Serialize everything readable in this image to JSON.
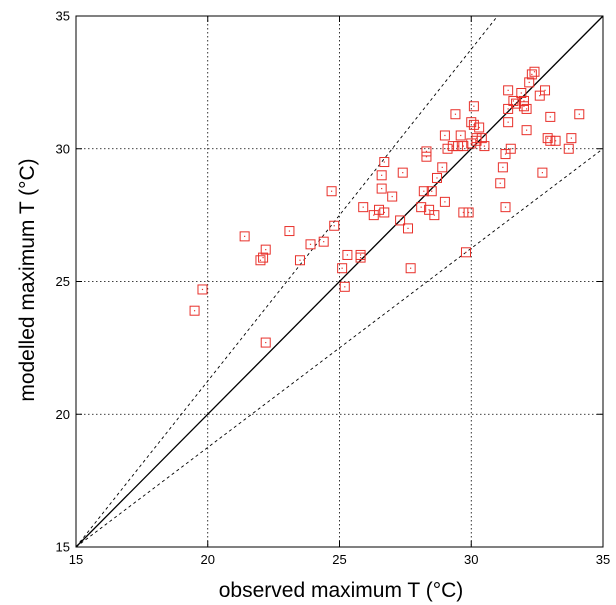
{
  "chart_data": {
    "type": "scatter",
    "title": "",
    "xlabel": "observed maximum T (°C)",
    "ylabel": "modelled maximum T (°C)",
    "xlim": [
      15,
      35
    ],
    "ylim": [
      15,
      35
    ],
    "xticks": [
      "15",
      "20",
      "25",
      "30",
      "35"
    ],
    "yticks": [
      "15",
      "20",
      "25",
      "30",
      "35"
    ],
    "grid": true,
    "legend": "none",
    "marker": "open-square",
    "marker_color": "#e8302a",
    "reference_lines": [
      {
        "name": "1:1 line",
        "style": "solid",
        "slope": 1.0
      },
      {
        "name": "upper dashed",
        "style": "dashed",
        "slope": 1.25
      },
      {
        "name": "lower dashed",
        "style": "dashed",
        "slope": 0.75
      }
    ],
    "series": [
      {
        "x": [
          19.5,
          19.8,
          21.4,
          22.0,
          22.1,
          22.2,
          22.2,
          23.1,
          23.5,
          23.9,
          24.4,
          24.7,
          24.8,
          25.1,
          25.2,
          25.3,
          25.8,
          25.8,
          25.9,
          26.3,
          26.5,
          26.6,
          26.6,
          26.7,
          26.7,
          27.0,
          27.3,
          27.4,
          27.6,
          27.7,
          28.1,
          28.2,
          28.3,
          28.3,
          28.4,
          28.5,
          28.6,
          28.7,
          28.9,
          29.0,
          29.0,
          29.1,
          29.3,
          29.4,
          29.5,
          29.6,
          29.7,
          29.7,
          29.8,
          29.9,
          30.0,
          30.0,
          30.1,
          30.1,
          30.2,
          30.2,
          30.3,
          30.4,
          30.5,
          31.1,
          31.2,
          31.3,
          31.3,
          31.4,
          31.4,
          31.4,
          31.5,
          31.6,
          31.7,
          31.9,
          32.0,
          32.0,
          32.1,
          32.1,
          32.2,
          32.3,
          32.4,
          32.6,
          32.7,
          32.8,
          32.9,
          33.0,
          33.0,
          33.2,
          33.7,
          33.8,
          34.1
        ],
        "y": [
          23.9,
          24.7,
          26.7,
          25.8,
          25.9,
          22.7,
          26.2,
          26.9,
          25.8,
          26.4,
          26.5,
          28.4,
          27.1,
          25.5,
          24.8,
          26.0,
          26.0,
          25.9,
          27.8,
          27.5,
          27.7,
          28.5,
          29.0,
          29.5,
          27.6,
          28.2,
          27.3,
          29.1,
          27.0,
          25.5,
          27.8,
          28.4,
          29.9,
          29.7,
          27.7,
          28.4,
          27.5,
          28.9,
          29.3,
          28.0,
          30.5,
          30.0,
          30.1,
          31.3,
          30.1,
          30.5,
          30.1,
          27.6,
          26.1,
          27.6,
          30.2,
          31.0,
          30.9,
          31.6,
          30.3,
          30.4,
          30.8,
          30.4,
          30.1,
          28.7,
          29.3,
          27.8,
          29.8,
          31.5,
          31.0,
          32.2,
          30.0,
          31.8,
          31.7,
          32.1,
          31.6,
          31.8,
          31.5,
          30.7,
          32.5,
          32.8,
          32.9,
          32.0,
          29.1,
          32.2,
          30.4,
          30.3,
          31.2,
          30.3,
          30.0,
          30.4,
          31.3
        ]
      }
    ]
  }
}
